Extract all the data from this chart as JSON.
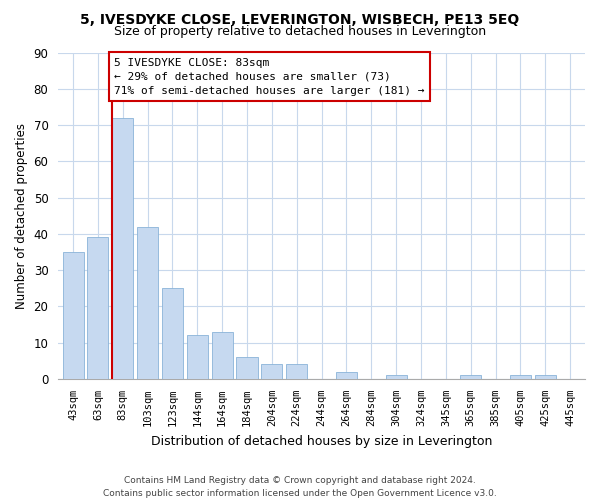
{
  "title": "5, IVESDYKE CLOSE, LEVERINGTON, WISBECH, PE13 5EQ",
  "subtitle": "Size of property relative to detached houses in Leverington",
  "xlabel": "Distribution of detached houses by size in Leverington",
  "ylabel": "Number of detached properties",
  "categories": [
    "43sqm",
    "63sqm",
    "83sqm",
    "103sqm",
    "123sqm",
    "144sqm",
    "164sqm",
    "184sqm",
    "204sqm",
    "224sqm",
    "244sqm",
    "264sqm",
    "284sqm",
    "304sqm",
    "324sqm",
    "345sqm",
    "365sqm",
    "385sqm",
    "405sqm",
    "425sqm",
    "445sqm"
  ],
  "values": [
    35,
    39,
    72,
    42,
    25,
    12,
    13,
    6,
    4,
    4,
    0,
    2,
    0,
    1,
    0,
    0,
    1,
    0,
    1,
    1,
    0
  ],
  "bar_color": "#c6d9f0",
  "bar_edge_color": "#8ab4d8",
  "vline_index": 2,
  "vline_color": "#cc0000",
  "ylim": [
    0,
    90
  ],
  "yticks": [
    0,
    10,
    20,
    30,
    40,
    50,
    60,
    70,
    80,
    90
  ],
  "annotation_line1": "5 IVESDYKE CLOSE: 83sqm",
  "annotation_line2": "← 29% of detached houses are smaller (73)",
  "annotation_line3": "71% of semi-detached houses are larger (181) →",
  "annotation_box_color": "#ffffff",
  "annotation_box_edge": "#cc0000",
  "footnote1": "Contains HM Land Registry data © Crown copyright and database right 2024.",
  "footnote2": "Contains public sector information licensed under the Open Government Licence v3.0.",
  "background_color": "#ffffff",
  "grid_color": "#c8d8ec"
}
